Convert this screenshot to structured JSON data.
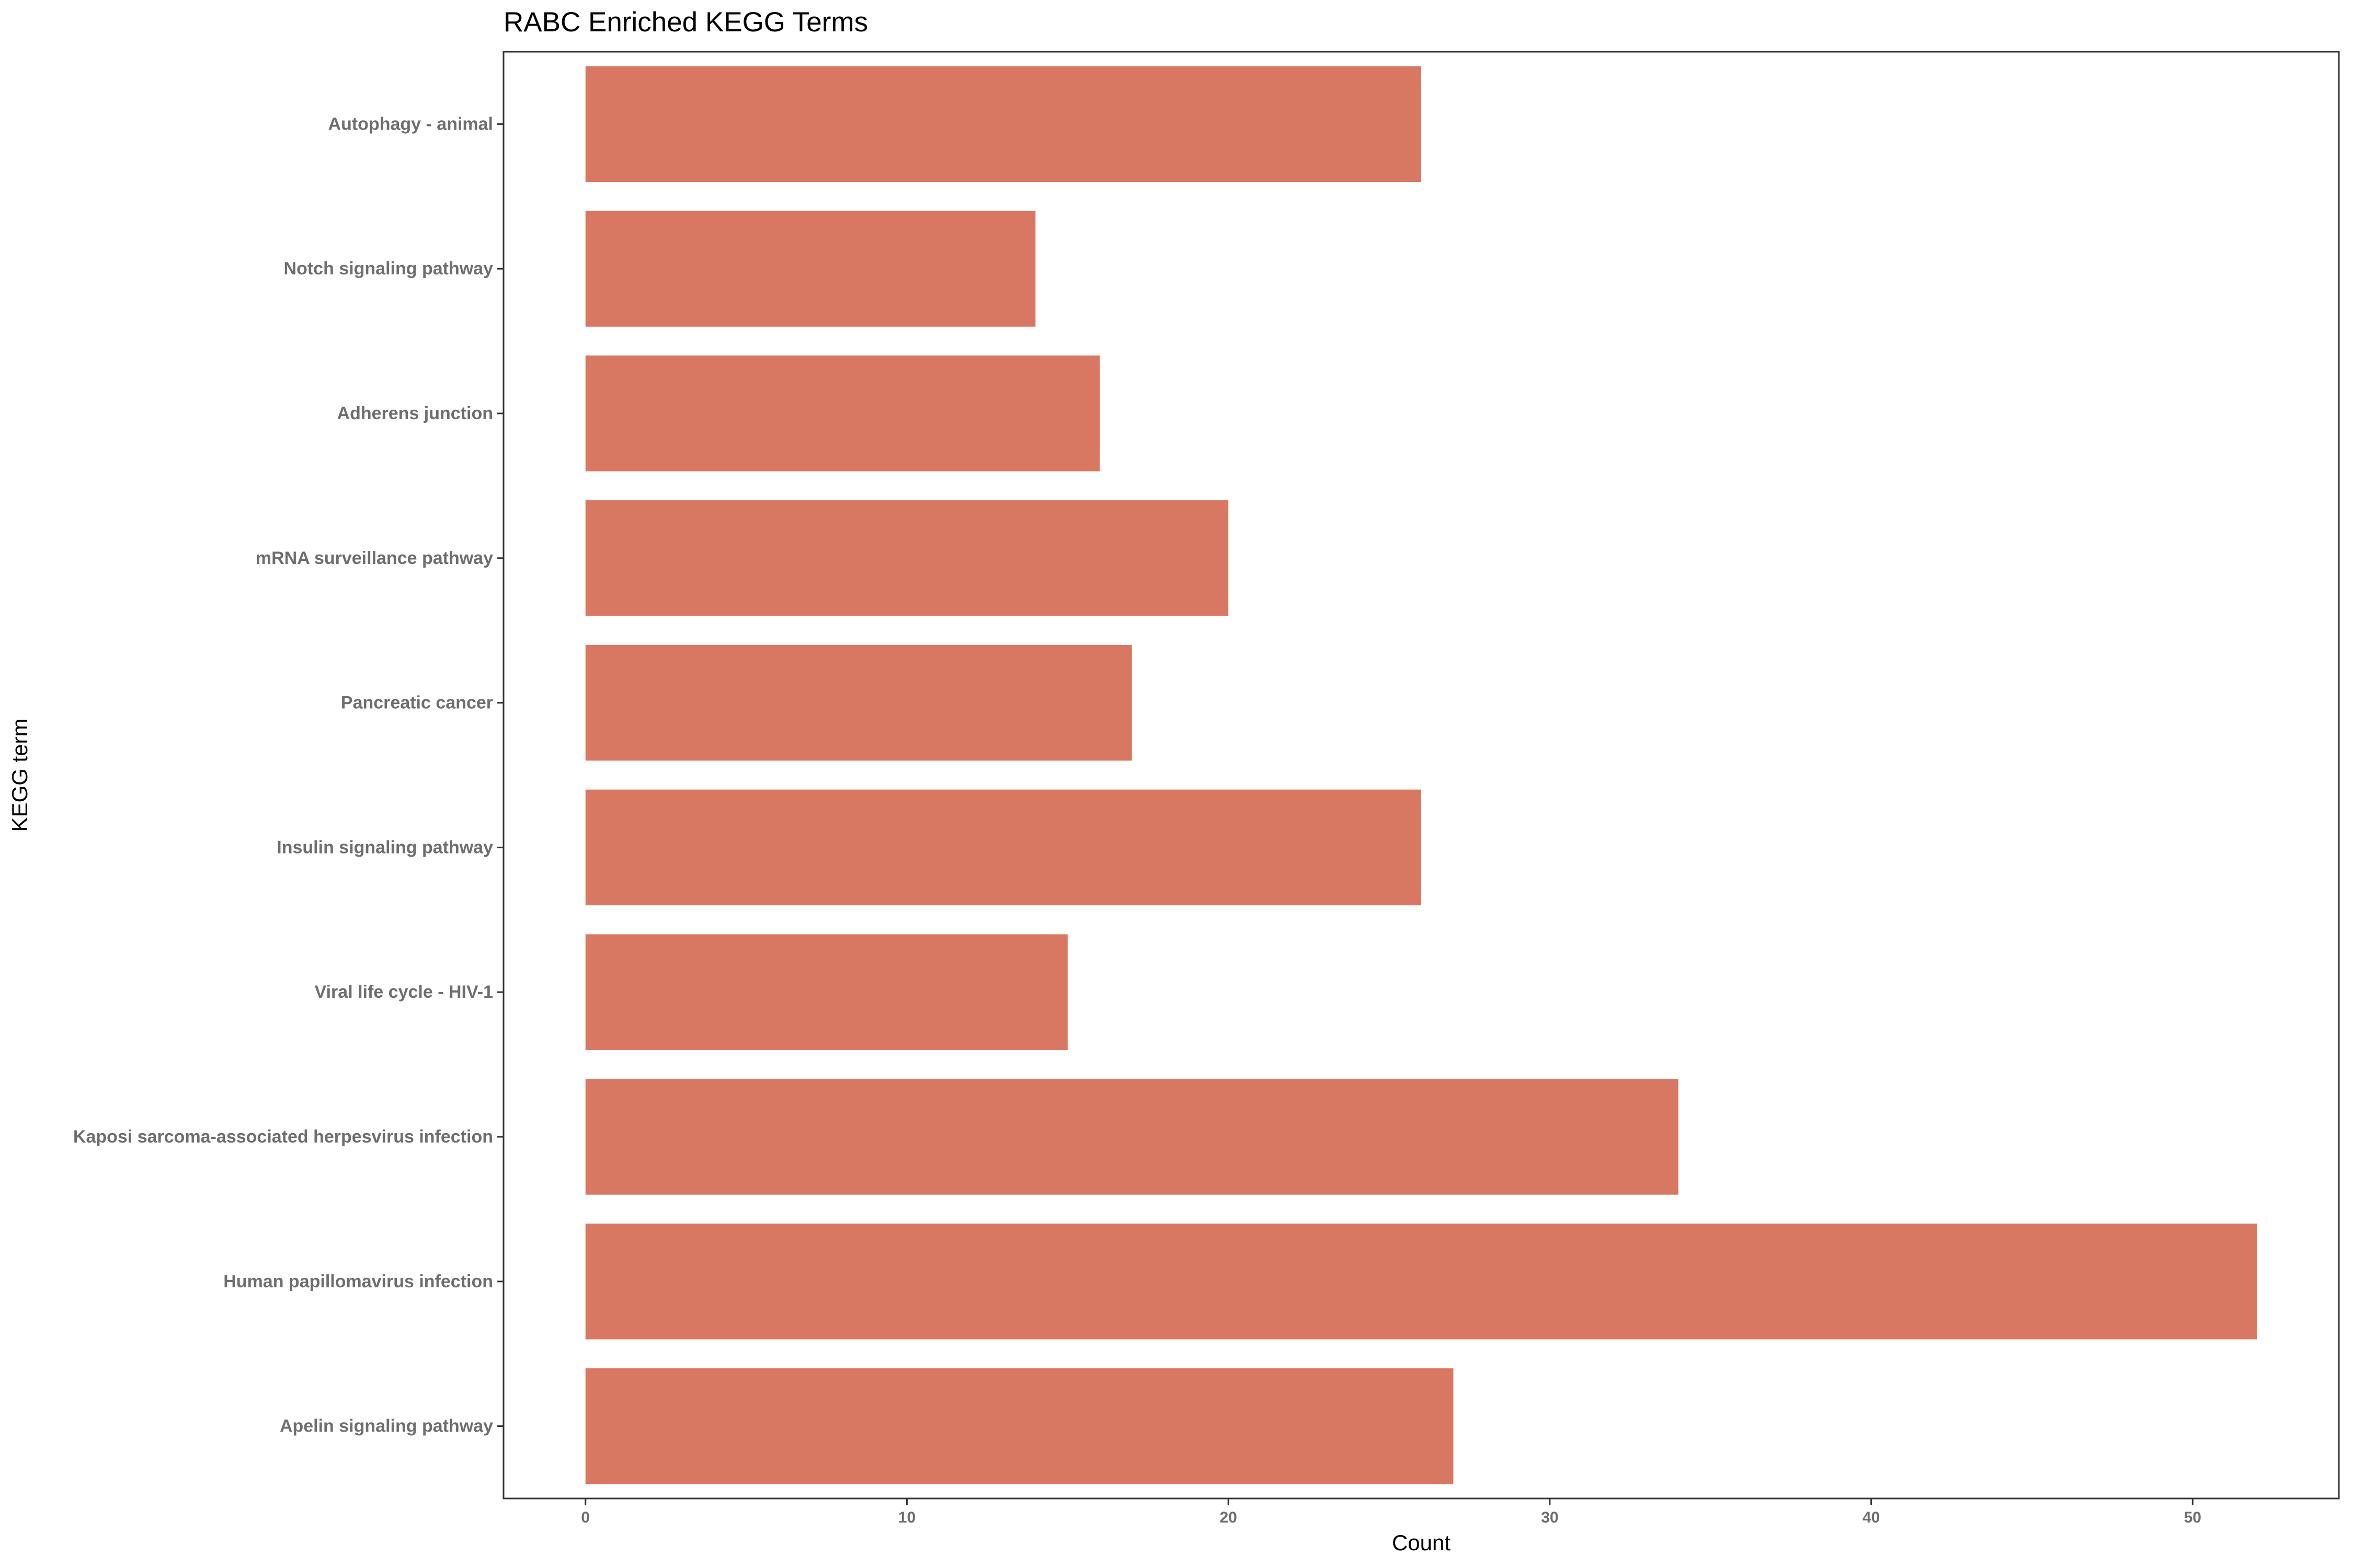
{
  "chart_data": {
    "type": "bar",
    "orientation": "horizontal",
    "title": "RABC Enriched KEGG Terms",
    "xlabel": "Count",
    "ylabel": "KEGG term",
    "categories": [
      "Autophagy - animal",
      "Notch signaling pathway",
      "Adherens junction",
      "mRNA surveillance pathway",
      "Pancreatic cancer",
      "Insulin signaling pathway",
      "Viral life cycle - HIV-1",
      "Kaposi sarcoma-associated herpesvirus infection",
      "Human papillomavirus infection",
      "Apelin signaling pathway"
    ],
    "values": [
      26,
      14,
      16,
      20,
      17,
      26,
      15,
      34,
      52,
      27
    ],
    "xlim": [
      -2.55,
      54.55
    ],
    "xticks": [
      0,
      10,
      20,
      30,
      40,
      50
    ],
    "xtick_labels": [
      "0",
      "10",
      "20",
      "30",
      "40",
      "50"
    ],
    "grid": false,
    "legend": "none",
    "bar_color": "#D97862",
    "panel_border_color": "#333333"
  }
}
